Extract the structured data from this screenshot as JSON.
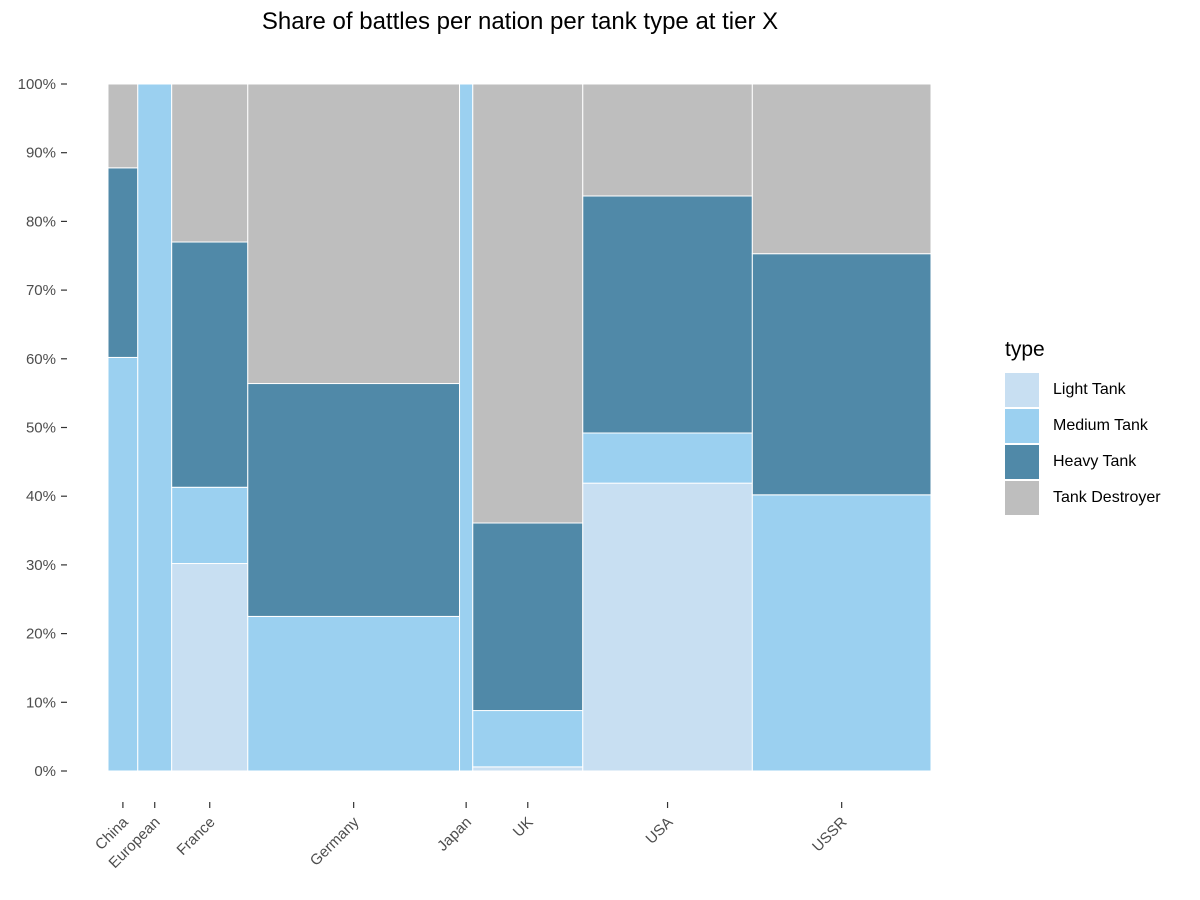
{
  "chart_data": {
    "type": "mosaic",
    "title": "Share of battles per nation per tank type at tier X",
    "xlabel": "",
    "ylabel": "",
    "ylim": [
      0,
      1
    ],
    "y_ticks": [
      "0%",
      "10%",
      "20%",
      "30%",
      "40%",
      "50%",
      "60%",
      "70%",
      "80%",
      "90%",
      "100%"
    ],
    "legend_title": "type",
    "legend_position": "right",
    "grid": false,
    "categories": [
      "China",
      "European",
      "France",
      "Germany",
      "Japan",
      "UK",
      "USA",
      "USSR"
    ],
    "category_widths": [
      0.036,
      0.041,
      0.092,
      0.256,
      0.016,
      0.133,
      0.205,
      0.216
    ],
    "series": [
      {
        "name": "Light Tank",
        "color": "#c8dff2",
        "values": [
          0,
          0,
          0.302,
          0,
          0,
          0.006,
          0.419,
          0
        ]
      },
      {
        "name": "Medium Tank",
        "color": "#9bd0f0",
        "values": [
          0.602,
          1.0,
          0.111,
          0.225,
          1.0,
          0.082,
          0.073,
          0.402
        ]
      },
      {
        "name": "Heavy Tank",
        "color": "#5089a8",
        "values": [
          0.276,
          0,
          0.357,
          0.339,
          0,
          0.273,
          0.345,
          0.351
        ]
      },
      {
        "name": "Tank Destroyer",
        "color": "#bebebe",
        "values": [
          0.122,
          0,
          0.23,
          0.436,
          0,
          0.639,
          0.163,
          0.247
        ]
      }
    ]
  }
}
